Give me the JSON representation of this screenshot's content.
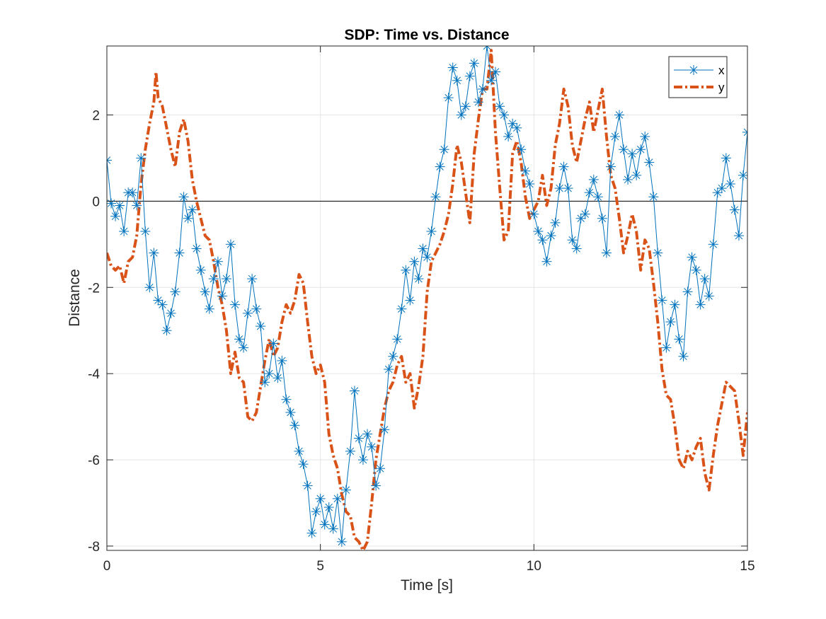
{
  "chart_data": {
    "type": "line",
    "title": "SDP: Time vs. Distance",
    "xlabel": "Time [s]",
    "ylabel": "Distance",
    "xlim": [
      0,
      15
    ],
    "ylim": [
      -8.1,
      3.6
    ],
    "xticks": [
      0,
      5,
      10,
      15
    ],
    "yticks": [
      -8,
      -6,
      -4,
      -2,
      0,
      2
    ],
    "grid": true,
    "zero_line": true,
    "legend_position": "top-right",
    "colors": {
      "x": "#0072BD",
      "y": "#D95319",
      "grid": "#e6e6e6",
      "axis": "#262626"
    },
    "series": [
      {
        "name": "x",
        "style": "solid line with asterisk markers",
        "points": [
          [
            0.0,
            0.95
          ],
          [
            0.1,
            -0.05
          ],
          [
            0.2,
            -0.35
          ],
          [
            0.3,
            -0.1
          ],
          [
            0.4,
            -0.7
          ],
          [
            0.5,
            0.2
          ],
          [
            0.6,
            0.2
          ],
          [
            0.7,
            -0.1
          ],
          [
            0.8,
            1.0
          ],
          [
            0.9,
            -0.7
          ],
          [
            1.0,
            -2.0
          ],
          [
            1.1,
            -1.2
          ],
          [
            1.2,
            -2.3
          ],
          [
            1.3,
            -2.4
          ],
          [
            1.4,
            -3.0
          ],
          [
            1.5,
            -2.6
          ],
          [
            1.6,
            -2.1
          ],
          [
            1.7,
            -1.2
          ],
          [
            1.8,
            0.1
          ],
          [
            1.9,
            -0.4
          ],
          [
            2.0,
            -0.2
          ],
          [
            2.1,
            -1.1
          ],
          [
            2.2,
            -1.6
          ],
          [
            2.3,
            -2.1
          ],
          [
            2.4,
            -2.5
          ],
          [
            2.5,
            -1.8
          ],
          [
            2.6,
            -1.4
          ],
          [
            2.7,
            -2.2
          ],
          [
            2.8,
            -1.8
          ],
          [
            2.9,
            -1.0
          ],
          [
            3.0,
            -2.4
          ],
          [
            3.1,
            -3.2
          ],
          [
            3.2,
            -3.4
          ],
          [
            3.3,
            -2.6
          ],
          [
            3.4,
            -1.8
          ],
          [
            3.5,
            -2.5
          ],
          [
            3.6,
            -2.9
          ],
          [
            3.7,
            -4.2
          ],
          [
            3.8,
            -4.0
          ],
          [
            3.9,
            -3.3
          ],
          [
            4.0,
            -4.1
          ],
          [
            4.1,
            -3.7
          ],
          [
            4.2,
            -4.6
          ],
          [
            4.3,
            -4.9
          ],
          [
            4.4,
            -5.2
          ],
          [
            4.5,
            -5.8
          ],
          [
            4.6,
            -6.1
          ],
          [
            4.7,
            -6.6
          ],
          [
            4.8,
            -7.7
          ],
          [
            4.9,
            -7.2
          ],
          [
            5.0,
            -6.9
          ],
          [
            5.1,
            -7.5
          ],
          [
            5.2,
            -7.1
          ],
          [
            5.3,
            -7.6
          ],
          [
            5.4,
            -6.9
          ],
          [
            5.5,
            -7.9
          ],
          [
            5.6,
            -6.7
          ],
          [
            5.7,
            -5.8
          ],
          [
            5.8,
            -4.4
          ],
          [
            5.9,
            -5.5
          ],
          [
            6.0,
            -6.0
          ],
          [
            6.1,
            -5.4
          ],
          [
            6.2,
            -5.7
          ],
          [
            6.3,
            -6.6
          ],
          [
            6.4,
            -6.2
          ],
          [
            6.5,
            -5.3
          ],
          [
            6.6,
            -3.9
          ],
          [
            6.7,
            -3.6
          ],
          [
            6.8,
            -3.2
          ],
          [
            6.9,
            -2.5
          ],
          [
            7.0,
            -1.6
          ],
          [
            7.1,
            -2.3
          ],
          [
            7.2,
            -1.4
          ],
          [
            7.3,
            -1.8
          ],
          [
            7.4,
            -1.1
          ],
          [
            7.5,
            -1.3
          ],
          [
            7.6,
            -0.7
          ],
          [
            7.7,
            0.1
          ],
          [
            7.8,
            0.8
          ],
          [
            7.9,
            1.2
          ],
          [
            8.0,
            2.4
          ],
          [
            8.1,
            3.1
          ],
          [
            8.2,
            2.8
          ],
          [
            8.3,
            2.0
          ],
          [
            8.4,
            2.2
          ],
          [
            8.5,
            2.9
          ],
          [
            8.6,
            3.2
          ],
          [
            8.7,
            2.3
          ],
          [
            8.8,
            2.6
          ],
          [
            8.9,
            3.6
          ],
          [
            9.0,
            2.8
          ],
          [
            9.1,
            3.0
          ],
          [
            9.2,
            2.2
          ],
          [
            9.3,
            2.0
          ],
          [
            9.4,
            1.5
          ],
          [
            9.5,
            1.8
          ],
          [
            9.6,
            1.7
          ],
          [
            9.7,
            1.2
          ],
          [
            9.8,
            0.7
          ],
          [
            9.9,
            0.4
          ],
          [
            10.0,
            -0.3
          ],
          [
            10.1,
            -0.7
          ],
          [
            10.2,
            -0.9
          ],
          [
            10.3,
            -1.4
          ],
          [
            10.4,
            -0.8
          ],
          [
            10.5,
            -0.5
          ],
          [
            10.6,
            0.3
          ],
          [
            10.7,
            0.8
          ],
          [
            10.8,
            0.3
          ],
          [
            10.9,
            -0.9
          ],
          [
            11.0,
            -1.1
          ],
          [
            11.1,
            -0.4
          ],
          [
            11.2,
            -0.3
          ],
          [
            11.3,
            0.2
          ],
          [
            11.4,
            0.5
          ],
          [
            11.5,
            0.1
          ],
          [
            11.6,
            -0.4
          ],
          [
            11.7,
            -1.2
          ],
          [
            11.8,
            0.8
          ],
          [
            11.9,
            1.5
          ],
          [
            12.0,
            2.0
          ],
          [
            12.1,
            1.2
          ],
          [
            12.2,
            0.5
          ],
          [
            12.3,
            1.1
          ],
          [
            12.4,
            0.6
          ],
          [
            12.5,
            1.2
          ],
          [
            12.6,
            1.5
          ],
          [
            12.7,
            0.9
          ],
          [
            12.8,
            0.1
          ],
          [
            12.9,
            -1.2
          ],
          [
            13.0,
            -2.3
          ],
          [
            13.1,
            -3.4
          ],
          [
            13.2,
            -2.8
          ],
          [
            13.3,
            -2.4
          ],
          [
            13.4,
            -3.2
          ],
          [
            13.5,
            -3.6
          ],
          [
            13.6,
            -2.1
          ],
          [
            13.7,
            -1.3
          ],
          [
            13.8,
            -1.6
          ],
          [
            13.9,
            -2.4
          ],
          [
            14.0,
            -1.8
          ],
          [
            14.1,
            -2.2
          ],
          [
            14.2,
            -1.0
          ],
          [
            14.3,
            0.2
          ],
          [
            14.4,
            0.3
          ],
          [
            14.5,
            1.0
          ],
          [
            14.6,
            0.4
          ],
          [
            14.7,
            -0.2
          ],
          [
            14.8,
            -0.8
          ],
          [
            14.9,
            0.6
          ],
          [
            15.0,
            1.6
          ]
        ]
      },
      {
        "name": "y",
        "style": "dash-dot thick line",
        "points": [
          [
            0.0,
            -1.2
          ],
          [
            0.1,
            -1.5
          ],
          [
            0.2,
            -1.6
          ],
          [
            0.3,
            -1.5
          ],
          [
            0.4,
            -1.9
          ],
          [
            0.5,
            -1.4
          ],
          [
            0.6,
            -1.3
          ],
          [
            0.7,
            -0.8
          ],
          [
            0.8,
            0.4
          ],
          [
            0.9,
            1.2
          ],
          [
            1.0,
            1.8
          ],
          [
            1.1,
            2.3
          ],
          [
            1.15,
            3.0
          ],
          [
            1.2,
            2.4
          ],
          [
            1.3,
            2.2
          ],
          [
            1.4,
            1.7
          ],
          [
            1.5,
            1.2
          ],
          [
            1.6,
            0.8
          ],
          [
            1.7,
            1.6
          ],
          [
            1.8,
            1.9
          ],
          [
            1.9,
            1.4
          ],
          [
            2.0,
            0.5
          ],
          [
            2.1,
            0.0
          ],
          [
            2.2,
            -0.4
          ],
          [
            2.3,
            -0.8
          ],
          [
            2.4,
            -0.9
          ],
          [
            2.5,
            -1.4
          ],
          [
            2.6,
            -2.0
          ],
          [
            2.7,
            -2.4
          ],
          [
            2.8,
            -3.0
          ],
          [
            2.9,
            -4.0
          ],
          [
            3.0,
            -3.5
          ],
          [
            3.1,
            -4.1
          ],
          [
            3.2,
            -4.2
          ],
          [
            3.3,
            -5.0
          ],
          [
            3.4,
            -5.1
          ],
          [
            3.5,
            -4.9
          ],
          [
            3.6,
            -4.3
          ],
          [
            3.7,
            -3.7
          ],
          [
            3.8,
            -3.2
          ],
          [
            3.9,
            -3.6
          ],
          [
            4.0,
            -3.4
          ],
          [
            4.1,
            -2.8
          ],
          [
            4.2,
            -2.4
          ],
          [
            4.3,
            -2.6
          ],
          [
            4.4,
            -2.3
          ],
          [
            4.5,
            -1.7
          ],
          [
            4.6,
            -1.9
          ],
          [
            4.7,
            -2.8
          ],
          [
            4.8,
            -3.6
          ],
          [
            4.9,
            -4.0
          ],
          [
            5.0,
            -3.8
          ],
          [
            5.1,
            -4.2
          ],
          [
            5.2,
            -5.4
          ],
          [
            5.3,
            -5.9
          ],
          [
            5.4,
            -6.2
          ],
          [
            5.5,
            -6.8
          ],
          [
            5.6,
            -7.2
          ],
          [
            5.7,
            -7.3
          ],
          [
            5.8,
            -7.8
          ],
          [
            5.9,
            -7.9
          ],
          [
            6.0,
            -8.1
          ],
          [
            6.1,
            -7.9
          ],
          [
            6.2,
            -7.0
          ],
          [
            6.3,
            -6.0
          ],
          [
            6.4,
            -5.4
          ],
          [
            6.5,
            -4.8
          ],
          [
            6.6,
            -4.4
          ],
          [
            6.7,
            -4.2
          ],
          [
            6.8,
            -3.8
          ],
          [
            6.9,
            -3.6
          ],
          [
            7.0,
            -4.2
          ],
          [
            7.1,
            -4.0
          ],
          [
            7.2,
            -4.8
          ],
          [
            7.3,
            -4.3
          ],
          [
            7.4,
            -3.6
          ],
          [
            7.5,
            -2.1
          ],
          [
            7.6,
            -1.4
          ],
          [
            7.7,
            -1.2
          ],
          [
            7.8,
            -1.0
          ],
          [
            7.9,
            -0.7
          ],
          [
            8.0,
            -0.3
          ],
          [
            8.1,
            0.4
          ],
          [
            8.2,
            1.3
          ],
          [
            8.3,
            0.9
          ],
          [
            8.4,
            0.2
          ],
          [
            8.5,
            -0.5
          ],
          [
            8.6,
            1.1
          ],
          [
            8.7,
            1.9
          ],
          [
            8.8,
            2.6
          ],
          [
            8.9,
            2.6
          ],
          [
            9.0,
            3.5
          ],
          [
            9.1,
            1.6
          ],
          [
            9.2,
            0.3
          ],
          [
            9.3,
            -0.9
          ],
          [
            9.4,
            -0.7
          ],
          [
            9.5,
            1.1
          ],
          [
            9.6,
            1.4
          ],
          [
            9.7,
            0.9
          ],
          [
            9.8,
            0.1
          ],
          [
            9.9,
            -0.4
          ],
          [
            10.0,
            -0.2
          ],
          [
            10.1,
            0.0
          ],
          [
            10.2,
            0.6
          ],
          [
            10.3,
            -0.1
          ],
          [
            10.4,
            0.3
          ],
          [
            10.5,
            1.3
          ],
          [
            10.6,
            1.8
          ],
          [
            10.7,
            2.6
          ],
          [
            10.8,
            2.2
          ],
          [
            10.9,
            1.3
          ],
          [
            11.0,
            0.9
          ],
          [
            11.1,
            1.4
          ],
          [
            11.2,
            1.9
          ],
          [
            11.3,
            2.3
          ],
          [
            11.4,
            1.6
          ],
          [
            11.5,
            2.1
          ],
          [
            11.6,
            2.6
          ],
          [
            11.7,
            1.5
          ],
          [
            11.8,
            0.6
          ],
          [
            11.9,
            0.3
          ],
          [
            12.0,
            -0.4
          ],
          [
            12.1,
            -1.2
          ],
          [
            12.2,
            -0.8
          ],
          [
            12.3,
            -0.3
          ],
          [
            12.4,
            -0.7
          ],
          [
            12.5,
            -1.6
          ],
          [
            12.6,
            -0.9
          ],
          [
            12.7,
            -1.1
          ],
          [
            12.8,
            -1.9
          ],
          [
            12.9,
            -2.8
          ],
          [
            13.0,
            -3.9
          ],
          [
            13.1,
            -4.5
          ],
          [
            13.2,
            -4.6
          ],
          [
            13.3,
            -5.2
          ],
          [
            13.4,
            -6.0
          ],
          [
            13.5,
            -6.2
          ],
          [
            13.6,
            -5.8
          ],
          [
            13.7,
            -6.0
          ],
          [
            13.8,
            -5.7
          ],
          [
            13.9,
            -5.5
          ],
          [
            14.0,
            -6.3
          ],
          [
            14.1,
            -6.7
          ],
          [
            14.2,
            -5.9
          ],
          [
            14.3,
            -5.2
          ],
          [
            14.4,
            -4.7
          ],
          [
            14.5,
            -4.2
          ],
          [
            14.6,
            -4.3
          ],
          [
            14.7,
            -4.4
          ],
          [
            14.8,
            -5.1
          ],
          [
            14.9,
            -5.9
          ],
          [
            15.0,
            -4.9
          ]
        ]
      }
    ]
  }
}
